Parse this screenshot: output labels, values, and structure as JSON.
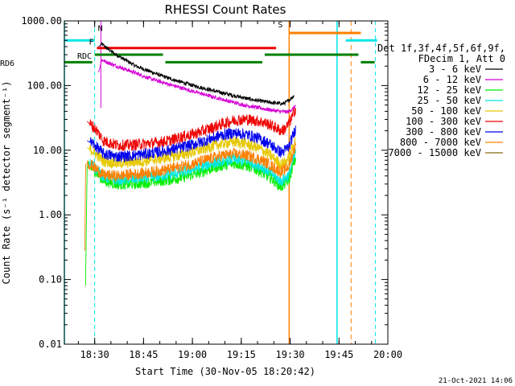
{
  "chart_data": {
    "type": "line",
    "title": "RHESSI Count Rates",
    "xlabel": "Start Time (30-Nov-05 18:20:42)",
    "ylabel": "Count Rate (s⁻¹ detector segment⁻¹)",
    "yscale": "log",
    "ylim": [
      0.01,
      1000
    ],
    "xlim_minutes": [
      0,
      99.3
    ],
    "x_tick_labels": [
      "18:30",
      "18:45",
      "19:00",
      "19:15",
      "19:30",
      "19:45",
      "20:00"
    ],
    "x_tick_minutes": [
      9.3,
      24.3,
      39.3,
      54.3,
      69.3,
      84.3,
      99.3
    ],
    "y_tick_labels": [
      "0.01",
      "0.10",
      "1.00",
      "10.00",
      "100.00",
      "1000.00"
    ],
    "y_tick_values": [
      0.01,
      0.1,
      1,
      10,
      100,
      1000
    ],
    "legend_header": [
      "Det 1f,3f,4f,5f,6f,9f,",
      "FDecim 1, Att 0"
    ],
    "legend_position": "outside-right",
    "timestamp": "21-Oct-2021 14:06",
    "series": [
      {
        "name": "3 - 6 keV",
        "color": "#000000",
        "x": [
          10.5,
          11.5,
          13,
          15,
          18,
          22,
          27,
          32,
          38,
          45,
          52,
          58,
          63,
          67,
          68.5,
          69.5,
          70.5
        ],
        "y": [
          400,
          440,
          380,
          320,
          260,
          200,
          160,
          130,
          105,
          85,
          70,
          60,
          55,
          52,
          57,
          63,
          70
        ]
      },
      {
        "name": "6 - 12 keV",
        "color": "#d400d4",
        "x": [
          10.5,
          11.5,
          13,
          16,
          20,
          26,
          32,
          40,
          48,
          55,
          62,
          66,
          68.5,
          70,
          71
        ],
        "y": [
          160,
          250,
          230,
          200,
          170,
          130,
          105,
          80,
          62,
          50,
          43,
          40,
          39,
          43,
          49
        ]
      },
      {
        "name": "12 - 25 keV",
        "color": "#00ee00",
        "x": [
          6.5,
          7,
          7.6,
          8.5,
          10,
          12,
          16,
          20,
          24,
          28,
          32,
          36,
          40,
          44,
          48,
          52,
          56,
          60,
          63,
          65,
          66.5,
          67.5,
          69,
          70,
          71
        ],
        "y": [
          0.08,
          5.8,
          5.5,
          5.3,
          4.4,
          3.4,
          3.0,
          3.0,
          3.1,
          3.3,
          3.5,
          3.8,
          4.3,
          5.0,
          5.8,
          6.3,
          5.8,
          4.8,
          3.8,
          3.2,
          2.7,
          3.0,
          3.5,
          5.5,
          7.5
        ]
      },
      {
        "name": "25 - 50 keV",
        "color": "#00e6e6",
        "x": [
          7,
          7.6,
          8.5,
          10,
          12,
          16,
          20,
          24,
          28,
          32,
          36,
          40,
          44,
          48,
          52,
          56,
          60,
          63,
          65,
          66.5,
          67.5,
          69,
          70,
          71
        ],
        "y": [
          6.5,
          6.2,
          6.0,
          5.0,
          3.9,
          3.5,
          3.6,
          3.7,
          3.9,
          4.2,
          4.6,
          5.2,
          6.0,
          6.8,
          7.3,
          6.8,
          5.8,
          4.6,
          3.8,
          3.3,
          3.6,
          4.2,
          6.5,
          9
        ]
      },
      {
        "name": "50 - 100 keV",
        "color": "#e6c800",
        "x": [
          7,
          7.6,
          8.5,
          10,
          12,
          16,
          20,
          24,
          28,
          32,
          36,
          40,
          44,
          48,
          52,
          56,
          60,
          63,
          65,
          66.5,
          67.5,
          69,
          70,
          71
        ],
        "y": [
          11,
          10.5,
          10,
          8.5,
          6.8,
          6.3,
          6.5,
          6.8,
          7.2,
          7.8,
          8.5,
          9.5,
          11,
          12.5,
          13.5,
          12.5,
          10.5,
          8.5,
          7.0,
          6.0,
          6.4,
          7.5,
          11,
          15
        ]
      },
      {
        "name": "100 - 300 keV",
        "color": "#ee0000",
        "x": [
          7,
          7.6,
          8.5,
          10,
          12,
          16,
          20,
          24,
          28,
          32,
          36,
          40,
          44,
          48,
          52,
          56,
          60,
          63,
          65,
          66.5,
          67.5,
          69,
          70,
          71
        ],
        "y": [
          28,
          26,
          24,
          20,
          14,
          12,
          12,
          12.5,
          13,
          14,
          16,
          18,
          21,
          25,
          29,
          30,
          28,
          25,
          22,
          20,
          21,
          26,
          33,
          45
        ]
      },
      {
        "name": "300 - 800 keV",
        "color": "#0000ee",
        "x": [
          7,
          7.6,
          8.5,
          10,
          12,
          16,
          20,
          24,
          28,
          32,
          36,
          40,
          44,
          48,
          52,
          56,
          60,
          63,
          65,
          66.5,
          67.5,
          69,
          70,
          71
        ],
        "y": [
          14,
          13.5,
          13,
          11,
          8.8,
          8.0,
          8.2,
          8.6,
          9.2,
          10,
          11,
          12.5,
          14.5,
          17,
          18.5,
          17.5,
          15,
          12.5,
          10.5,
          9.2,
          9.8,
          11.5,
          16,
          22
        ]
      },
      {
        "name": "800 - 7000 keV",
        "color": "#ff8000",
        "x": [
          6.3,
          6.5,
          7,
          7.6,
          8.5,
          10,
          12,
          16,
          20,
          24,
          28,
          32,
          36,
          40,
          44,
          48,
          52,
          56,
          60,
          63,
          65,
          66.5,
          67.5,
          69,
          70,
          71
        ],
        "y": [
          0.28,
          6.0,
          6.2,
          6.0,
          5.8,
          5.0,
          4.1,
          4.0,
          4.2,
          4.4,
          4.7,
          5.1,
          5.6,
          6.3,
          7.2,
          8.2,
          8.8,
          8.3,
          7.2,
          6.0,
          5.1,
          4.6,
          4.9,
          5.8,
          8.5,
          12
        ]
      },
      {
        "name": "7000 - 15000 keV",
        "color": "#8b6914",
        "x": [],
        "y": []
      }
    ],
    "overlays": {
      "saa": {
        "label": "S",
        "color": "#ff8000",
        "y": 650,
        "x_start": 69,
        "x_end": 91
      },
      "flare": {
        "label": "F",
        "color": "#ee0000",
        "y": 380,
        "x_start": 10,
        "x_end": 65
      },
      "night_segments": {
        "color": "#00e6e6",
        "y": 500,
        "segments": [
          [
            0,
            9.3
          ],
          [
            86.4,
            96
          ]
        ]
      },
      "decimation": {
        "label": "RDC",
        "color": "#008000",
        "y": 230,
        "segments": [
          [
            0,
            9.3
          ],
          [
            9.3,
            31
          ],
          [
            31,
            61.5
          ],
          [
            61.5,
            91
          ],
          [
            91,
            96
          ]
        ]
      },
      "rd_extra": {
        "label": "RD6",
        "color": "#008000",
        "y": 300,
        "segments": [
          [
            10,
            31
          ]
        ]
      },
      "n_label": {
        "label": "N",
        "color": "#00e6e6"
      },
      "vlines_dashed_cyan": [
        9.3,
        95.5
      ],
      "vlines_solid_cyan": [
        0,
        83.7
      ],
      "vline_solid_orange": 69,
      "vline_dashed_orange": 88,
      "vline_magenta": 11.2
    }
  }
}
